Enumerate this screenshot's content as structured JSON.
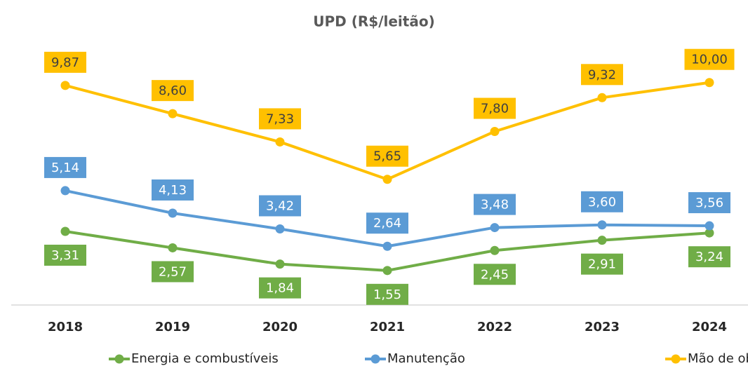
{
  "chart_data": {
    "type": "line",
    "title": "UPD (R$/leitão)",
    "categories": [
      "2018",
      "2019",
      "2020",
      "2021",
      "2022",
      "2023",
      "2024"
    ],
    "ylim": [
      0,
      11
    ],
    "legend": "bottom",
    "series": [
      {
        "name": "Energia e combustíveis",
        "color": "#70ad47",
        "label_position": "below",
        "values": [
          3.31,
          2.57,
          1.84,
          1.55,
          2.45,
          2.91,
          3.24
        ],
        "value_labels": [
          "3,31",
          "2,57",
          "1,84",
          "1,55",
          "2,45",
          "2,91",
          "3,24"
        ]
      },
      {
        "name": "Manutenção",
        "color": "#5b9bd5",
        "label_position": "above",
        "values": [
          5.14,
          4.13,
          3.42,
          2.64,
          3.48,
          3.6,
          3.56
        ],
        "value_labels": [
          "5,14",
          "4,13",
          "3,42",
          "2,64",
          "3,48",
          "3,60",
          "3,56"
        ]
      },
      {
        "name": "Mão de obra",
        "color": "#ffc000",
        "label_position": "above",
        "values": [
          9.87,
          8.6,
          7.33,
          5.65,
          7.8,
          9.32,
          10.0
        ],
        "value_labels": [
          "9,87",
          "8,60",
          "7,33",
          "5,65",
          "7,80",
          "9,32",
          "10,00"
        ]
      }
    ]
  }
}
